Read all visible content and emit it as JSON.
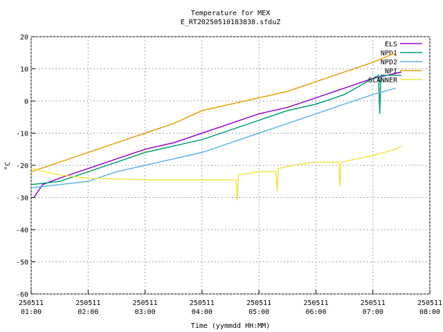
{
  "chart_data": {
    "type": "line",
    "title": "Temperature for MEX",
    "subtitle": "E_RT20250510183838.sfduZ",
    "xlabel": "Time (yymmdd HH:MM)",
    "ylabel": "°C",
    "xlim": [
      1,
      8
    ],
    "xticks": [
      {
        "value": 1,
        "label": "250511 01:00"
      },
      {
        "value": 2,
        "label": "250511 02:00"
      },
      {
        "value": 3,
        "label": "250511 03:00"
      },
      {
        "value": 4,
        "label": "250511 04:00"
      },
      {
        "value": 5,
        "label": "250511 05:00"
      },
      {
        "value": 6,
        "label": "250511 06:00"
      },
      {
        "value": 7,
        "label": "250511 07:00"
      },
      {
        "value": 8,
        "label": "250511 08:00"
      }
    ],
    "ylim": [
      -60,
      20
    ],
    "yticks": [
      -60,
      -50,
      -40,
      -30,
      -20,
      -10,
      0,
      10,
      20
    ],
    "grid": true,
    "legend": "top-right",
    "series": [
      {
        "name": "ELS",
        "color": "#9400d3",
        "x": [
          1.05,
          1.2,
          1.5,
          2.0,
          2.5,
          3.0,
          3.5,
          4.0,
          4.5,
          5.0,
          5.5,
          6.0,
          6.5,
          7.0,
          7.5
        ],
        "values": [
          -30,
          -26,
          -24,
          -21,
          -18,
          -15,
          -13,
          -10,
          -7,
          -4,
          -2,
          1,
          4,
          7,
          9
        ]
      },
      {
        "name": "NPD1",
        "color": "#009e73",
        "x": [
          1.0,
          1.5,
          2.0,
          2.5,
          3.0,
          3.5,
          4.0,
          4.5,
          5.0,
          5.5,
          6.0,
          6.5,
          6.9,
          7.1,
          7.12,
          7.14,
          7.5
        ],
        "values": [
          -26,
          -25,
          -22,
          -19,
          -16,
          -14,
          -12,
          -9,
          -6,
          -3,
          -1,
          2,
          6,
          8,
          -4,
          8,
          8
        ]
      },
      {
        "name": "NPD2",
        "color": "#56b4e9",
        "x": [
          1.0,
          1.5,
          2.0,
          2.5,
          3.0,
          3.5,
          4.0,
          4.5,
          5.0,
          5.5,
          6.0,
          6.5,
          7.0,
          7.4
        ],
        "values": [
          -27,
          -26,
          -25,
          -22,
          -20,
          -18,
          -16,
          -13,
          -10,
          -7,
          -4,
          -1,
          2,
          4
        ]
      },
      {
        "name": "NPI",
        "color": "#e69f00",
        "x": [
          1.0,
          1.5,
          2.0,
          2.5,
          3.0,
          3.5,
          4.0,
          4.5,
          5.0,
          5.5,
          6.0,
          6.5,
          7.0,
          7.4
        ],
        "values": [
          -22,
          -19,
          -16,
          -13,
          -10,
          -7,
          -3,
          -1,
          1,
          3,
          6,
          9,
          12,
          15
        ]
      },
      {
        "name": "SCANNER",
        "color": "#f0e442",
        "x": [
          1.0,
          1.5,
          2.0,
          3.0,
          4.0,
          4.6,
          4.62,
          4.64,
          5.0,
          5.3,
          5.32,
          5.34,
          5.6,
          6.0,
          6.4,
          6.42,
          6.44,
          7.0,
          7.4,
          7.5
        ],
        "values": [
          -21,
          -23,
          -24,
          -24.5,
          -24.5,
          -24.5,
          -31,
          -23,
          -22,
          -22,
          -28,
          -21,
          -20,
          -19,
          -19,
          -26.5,
          -19,
          -17,
          -15,
          -14
        ]
      }
    ]
  }
}
